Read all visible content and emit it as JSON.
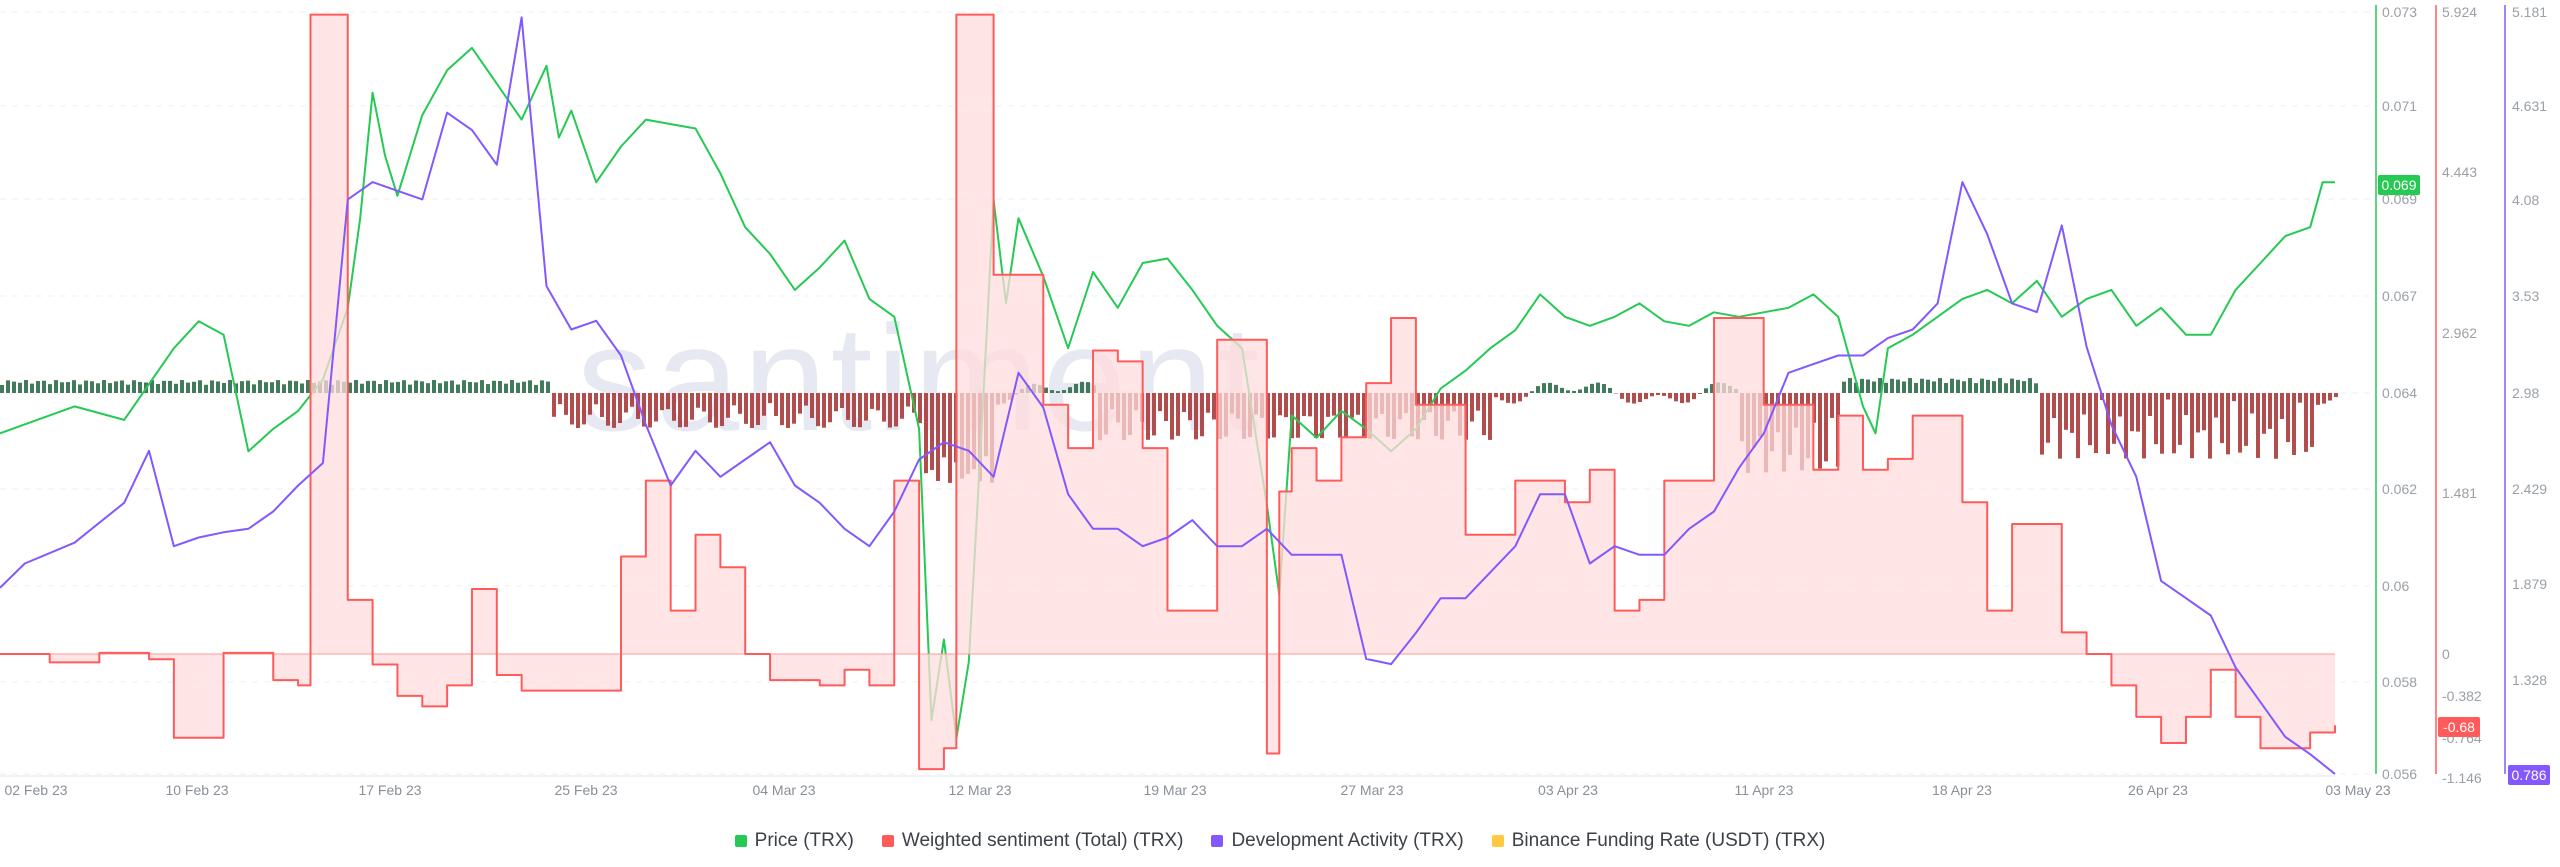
{
  "chart_data": {
    "type": "line",
    "watermark": "santiment",
    "x_ticks": [
      "02 Feb 23",
      "10 Feb 23",
      "17 Feb 23",
      "25 Feb 23",
      "04 Mar 23",
      "12 Mar 23",
      "19 Mar 23",
      "27 Mar 23",
      "03 Apr 23",
      "11 Apr 23",
      "18 Apr 23",
      "26 Apr 23",
      "03 May 23"
    ],
    "axes": {
      "price": {
        "ticks": [
          "0.073",
          "0.071",
          "0.069",
          "0.067",
          "0.064",
          "0.062",
          "0.06",
          "0.058",
          "0.056"
        ],
        "color": "#26c953",
        "current": "0.069"
      },
      "sentiment": {
        "ticks": [
          "5.924",
          "4.443",
          "2.962",
          "1.481",
          "0",
          "-0.382",
          "-0.764",
          "-1.146"
        ],
        "color": "#ff5b5b",
        "current": "-0.68"
      },
      "development": {
        "ticks": [
          "5.181",
          "4.631",
          "4.08",
          "3.53",
          "2.98",
          "2.429",
          "1.879",
          "1.328"
        ],
        "color": "#8358ff",
        "current": "0.786"
      }
    },
    "series": [
      {
        "name": "Price (TRX)",
        "axis": "price",
        "color": "#26c953",
        "points": [
          [
            0,
            0.0636
          ],
          [
            3,
            0.0642
          ],
          [
            5,
            0.0639
          ],
          [
            7,
            0.0655
          ],
          [
            8,
            0.0661
          ],
          [
            9,
            0.0658
          ],
          [
            10,
            0.0632
          ],
          [
            11,
            0.0637
          ],
          [
            12,
            0.0641
          ],
          [
            13,
            0.0648
          ],
          [
            14,
            0.0664
          ],
          [
            14.5,
            0.0684
          ],
          [
            15,
            0.0712
          ],
          [
            15.5,
            0.0698
          ],
          [
            16,
            0.0689
          ],
          [
            17,
            0.0707
          ],
          [
            18,
            0.0717
          ],
          [
            19,
            0.0722
          ],
          [
            20,
            0.0714
          ],
          [
            21,
            0.0706
          ],
          [
            22,
            0.0718
          ],
          [
            22.5,
            0.0702
          ],
          [
            23,
            0.0708
          ],
          [
            24,
            0.0692
          ],
          [
            25,
            0.07
          ],
          [
            26,
            0.0706
          ],
          [
            27,
            0.0705
          ],
          [
            28,
            0.0704
          ],
          [
            29,
            0.0694
          ],
          [
            30,
            0.0682
          ],
          [
            31,
            0.0676
          ],
          [
            32,
            0.0668
          ],
          [
            33,
            0.0673
          ],
          [
            34,
            0.0679
          ],
          [
            35,
            0.0666
          ],
          [
            36,
            0.0662
          ],
          [
            37,
            0.0637
          ],
          [
            37.5,
            0.0572
          ],
          [
            38,
            0.059
          ],
          [
            38.5,
            0.0568
          ],
          [
            39,
            0.0585
          ],
          [
            39.5,
            0.0635
          ],
          [
            40,
            0.0688
          ],
          [
            40.5,
            0.0665
          ],
          [
            41,
            0.0684
          ],
          [
            42,
            0.0671
          ],
          [
            43,
            0.0655
          ],
          [
            44,
            0.0672
          ],
          [
            45,
            0.0664
          ],
          [
            46,
            0.0674
          ],
          [
            47,
            0.0675
          ],
          [
            48,
            0.0668
          ],
          [
            49,
            0.066
          ],
          [
            50,
            0.0655
          ],
          [
            51,
            0.062
          ],
          [
            51.5,
            0.06
          ],
          [
            52,
            0.064
          ],
          [
            53,
            0.0635
          ],
          [
            54,
            0.0641
          ],
          [
            55,
            0.0637
          ],
          [
            56,
            0.0632
          ],
          [
            57,
            0.0637
          ],
          [
            58,
            0.0646
          ],
          [
            59,
            0.065
          ],
          [
            60,
            0.0655
          ],
          [
            61,
            0.0659
          ],
          [
            62,
            0.0667
          ],
          [
            63,
            0.0662
          ],
          [
            64,
            0.066
          ],
          [
            65,
            0.0662
          ],
          [
            66,
            0.0665
          ],
          [
            67,
            0.0661
          ],
          [
            68,
            0.066
          ],
          [
            69,
            0.0663
          ],
          [
            70,
            0.0662
          ],
          [
            71,
            0.0663
          ],
          [
            72,
            0.0664
          ],
          [
            73,
            0.0667
          ],
          [
            74,
            0.0662
          ],
          [
            75,
            0.0642
          ],
          [
            75.5,
            0.0636
          ],
          [
            76,
            0.0655
          ],
          [
            77,
            0.0658
          ],
          [
            78,
            0.0662
          ],
          [
            79,
            0.0666
          ],
          [
            80,
            0.0668
          ],
          [
            81,
            0.0665
          ],
          [
            82,
            0.067
          ],
          [
            83,
            0.0662
          ],
          [
            84,
            0.0666
          ],
          [
            85,
            0.0668
          ],
          [
            86,
            0.066
          ],
          [
            87,
            0.0664
          ],
          [
            88,
            0.0658
          ],
          [
            89,
            0.0658
          ],
          [
            90,
            0.0668
          ],
          [
            91,
            0.0674
          ],
          [
            92,
            0.068
          ],
          [
            93,
            0.0682
          ],
          [
            93.5,
            0.0692
          ],
          [
            94,
            0.0692
          ]
        ]
      },
      {
        "name": "Weighted sentiment (Total) (TRX)",
        "axis": "sentiment",
        "color": "#ff5b5b",
        "points": [
          [
            0,
            0
          ],
          [
            2,
            -0.08
          ],
          [
            4,
            0.01
          ],
          [
            6,
            -0.05
          ],
          [
            7,
            -0.8
          ],
          [
            8,
            -0.8
          ],
          [
            9,
            0.01
          ],
          [
            11,
            -0.25
          ],
          [
            12,
            -0.3
          ],
          [
            12.5,
            5.9
          ],
          [
            13.5,
            5.9
          ],
          [
            14,
            0.5
          ],
          [
            15,
            -0.1
          ],
          [
            16,
            -0.4
          ],
          [
            17,
            -0.5
          ],
          [
            18,
            -0.3
          ],
          [
            19,
            0.6
          ],
          [
            20,
            -0.2
          ],
          [
            21,
            -0.35
          ],
          [
            22,
            -0.35
          ],
          [
            24,
            -0.35
          ],
          [
            25,
            0.9
          ],
          [
            26,
            1.6
          ],
          [
            27,
            0.4
          ],
          [
            28,
            1.1
          ],
          [
            29,
            0.8
          ],
          [
            30,
            0
          ],
          [
            31,
            -0.25
          ],
          [
            33,
            -0.3
          ],
          [
            34,
            -0.15
          ],
          [
            35,
            -0.3
          ],
          [
            36,
            1.6
          ],
          [
            37,
            -1.1
          ],
          [
            38,
            -0.9
          ],
          [
            38.5,
            5.9
          ],
          [
            39.5,
            5.9
          ],
          [
            40,
            3.5
          ],
          [
            41,
            3.5
          ],
          [
            42,
            2.3
          ],
          [
            43,
            1.9
          ],
          [
            44,
            2.8
          ],
          [
            45,
            2.7
          ],
          [
            46,
            1.9
          ],
          [
            47,
            0.4
          ],
          [
            48,
            0.4
          ],
          [
            49,
            2.9
          ],
          [
            50,
            2.9
          ],
          [
            51,
            -0.95
          ],
          [
            51.5,
            1.5
          ],
          [
            52,
            1.9
          ],
          [
            53,
            1.6
          ],
          [
            54,
            2.0
          ],
          [
            55,
            2.5
          ],
          [
            56,
            3.1
          ],
          [
            57,
            2.3
          ],
          [
            58,
            2.3
          ],
          [
            59,
            1.1
          ],
          [
            60,
            1.1
          ],
          [
            61,
            1.6
          ],
          [
            62,
            1.6
          ],
          [
            63,
            1.4
          ],
          [
            64,
            1.7
          ],
          [
            65,
            0.4
          ],
          [
            66,
            0.5
          ],
          [
            67,
            1.6
          ],
          [
            68,
            1.6
          ],
          [
            69,
            3.1
          ],
          [
            70,
            3.1
          ],
          [
            71,
            2.3
          ],
          [
            72,
            2.3
          ],
          [
            73,
            1.7
          ],
          [
            74,
            2.2
          ],
          [
            75,
            1.7
          ],
          [
            76,
            1.8
          ],
          [
            77,
            2.2
          ],
          [
            78,
            2.2
          ],
          [
            79,
            1.4
          ],
          [
            80,
            0.4
          ],
          [
            81,
            1.2
          ],
          [
            82,
            1.2
          ],
          [
            83,
            0.2
          ],
          [
            84,
            0
          ],
          [
            85,
            -0.3
          ],
          [
            86,
            -0.6
          ],
          [
            87,
            -0.85
          ],
          [
            88,
            -0.6
          ],
          [
            89,
            -0.15
          ],
          [
            90,
            -0.6
          ],
          [
            91,
            -0.9
          ],
          [
            92,
            -0.9
          ],
          [
            93,
            -0.75
          ],
          [
            94,
            -0.68
          ]
        ]
      },
      {
        "name": "Development Activity (TRX)",
        "axis": "development",
        "color": "#8358ff",
        "points": [
          [
            0,
            1.86
          ],
          [
            1,
            2.0
          ],
          [
            3,
            2.12
          ],
          [
            5,
            2.35
          ],
          [
            6,
            2.65
          ],
          [
            7,
            2.1
          ],
          [
            8,
            2.15
          ],
          [
            9,
            2.18
          ],
          [
            10,
            2.2
          ],
          [
            11,
            2.3
          ],
          [
            12,
            2.45
          ],
          [
            13,
            2.58
          ],
          [
            14,
            4.1
          ],
          [
            15,
            4.2
          ],
          [
            17,
            4.1
          ],
          [
            18,
            4.6
          ],
          [
            19,
            4.5
          ],
          [
            20,
            4.3
          ],
          [
            21,
            5.15
          ],
          [
            22,
            3.6
          ],
          [
            23,
            3.35
          ],
          [
            24,
            3.4
          ],
          [
            25,
            3.2
          ],
          [
            26,
            2.8
          ],
          [
            27,
            2.45
          ],
          [
            28,
            2.65
          ],
          [
            29,
            2.5
          ],
          [
            30,
            2.6
          ],
          [
            31,
            2.7
          ],
          [
            32,
            2.45
          ],
          [
            33,
            2.35
          ],
          [
            34,
            2.2
          ],
          [
            35,
            2.1
          ],
          [
            36,
            2.3
          ],
          [
            37,
            2.6
          ],
          [
            38,
            2.7
          ],
          [
            39,
            2.65
          ],
          [
            40,
            2.5
          ],
          [
            41,
            3.1
          ],
          [
            42,
            2.9
          ],
          [
            43,
            2.4
          ],
          [
            44,
            2.2
          ],
          [
            45,
            2.2
          ],
          [
            46,
            2.1
          ],
          [
            47,
            2.15
          ],
          [
            48,
            2.25
          ],
          [
            49,
            2.1
          ],
          [
            50,
            2.1
          ],
          [
            51,
            2.2
          ],
          [
            52,
            2.05
          ],
          [
            53,
            2.05
          ],
          [
            54,
            2.05
          ],
          [
            55,
            1.45
          ],
          [
            56,
            1.42
          ],
          [
            57,
            1.6
          ],
          [
            58,
            1.8
          ],
          [
            59,
            1.8
          ],
          [
            60,
            1.95
          ],
          [
            61,
            2.1
          ],
          [
            62,
            2.4
          ],
          [
            63,
            2.4
          ],
          [
            64,
            2.0
          ],
          [
            65,
            2.1
          ],
          [
            66,
            2.05
          ],
          [
            67,
            2.05
          ],
          [
            68,
            2.2
          ],
          [
            69,
            2.3
          ],
          [
            70,
            2.55
          ],
          [
            71,
            2.75
          ],
          [
            72,
            3.1
          ],
          [
            73,
            3.15
          ],
          [
            74,
            3.2
          ],
          [
            75,
            3.2
          ],
          [
            76,
            3.3
          ],
          [
            77,
            3.35
          ],
          [
            78,
            3.5
          ],
          [
            79,
            4.2
          ],
          [
            80,
            3.9
          ],
          [
            81,
            3.5
          ],
          [
            82,
            3.45
          ],
          [
            83,
            3.95
          ],
          [
            84,
            3.25
          ],
          [
            85,
            2.8
          ],
          [
            86,
            2.5
          ],
          [
            87,
            1.9
          ],
          [
            88,
            1.8
          ],
          [
            89,
            1.7
          ],
          [
            90,
            1.4
          ],
          [
            91,
            1.2
          ],
          [
            92,
            1.0
          ],
          [
            93,
            0.9
          ],
          [
            94,
            0.786
          ]
        ]
      },
      {
        "name": "Binance Funding Rate (USDT) (TRX)",
        "axis": "funding",
        "color": "#ffc940",
        "points": []
      }
    ],
    "legend": [
      {
        "label": "Price (TRX)",
        "color": "#26c953"
      },
      {
        "label": "Weighted sentiment (Total) (TRX)",
        "color": "#ff5b5b"
      },
      {
        "label": "Development Activity (TRX)",
        "color": "#8358ff"
      },
      {
        "label": "Binance Funding Rate (USDT) (TRX)",
        "color": "#ffc940"
      }
    ]
  }
}
